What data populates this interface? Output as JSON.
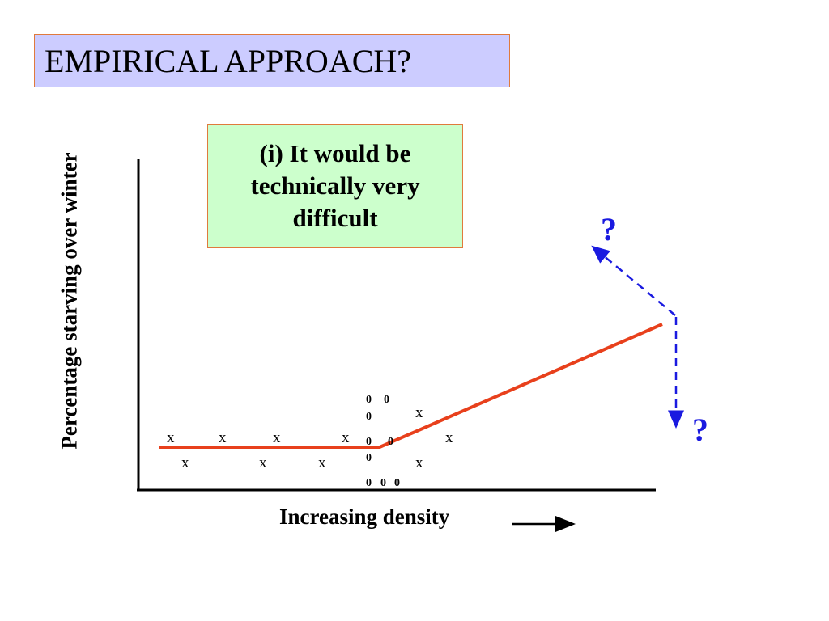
{
  "title": "EMPIRICAL APPROACH?",
  "note": "(i)  It would be technically very difficult",
  "diagram": {
    "ylabel": "Percentage starving over winter",
    "xlabel": "Increasing density",
    "question_mark_up": "?",
    "question_mark_down": "?",
    "marker_x": "x",
    "marker_o": "0"
  },
  "colors": {
    "title_fill": "#ccccff",
    "note_fill": "#ccffcc",
    "box_border": "#e07a3c",
    "trend_line": "#e8401c",
    "question_arrows": "#1a1ae0"
  }
}
